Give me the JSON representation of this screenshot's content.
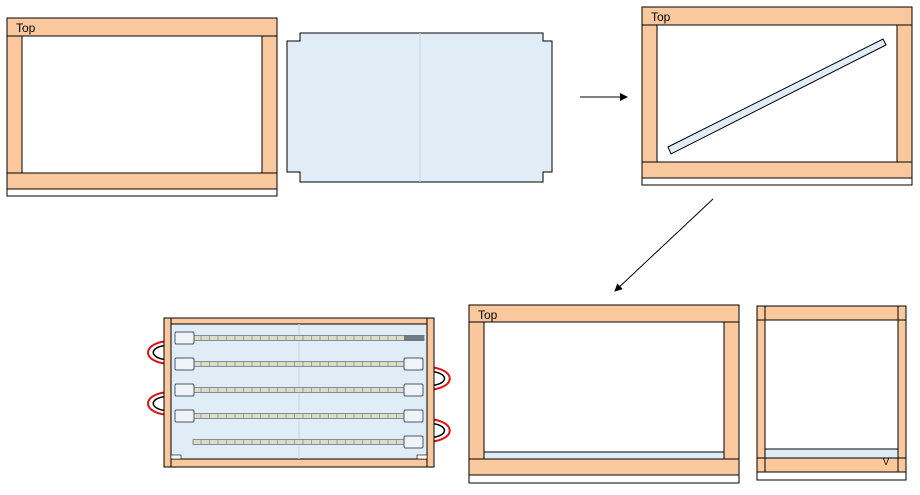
{
  "labels": {
    "top_1": "Top",
    "top_2": "Top",
    "top_3": "Top",
    "side_marker": "V"
  },
  "colors": {
    "wood": "#f9c89d",
    "panel": "#e0ecf6",
    "cable_red": "#e01010",
    "cable_black": "#000000"
  }
}
